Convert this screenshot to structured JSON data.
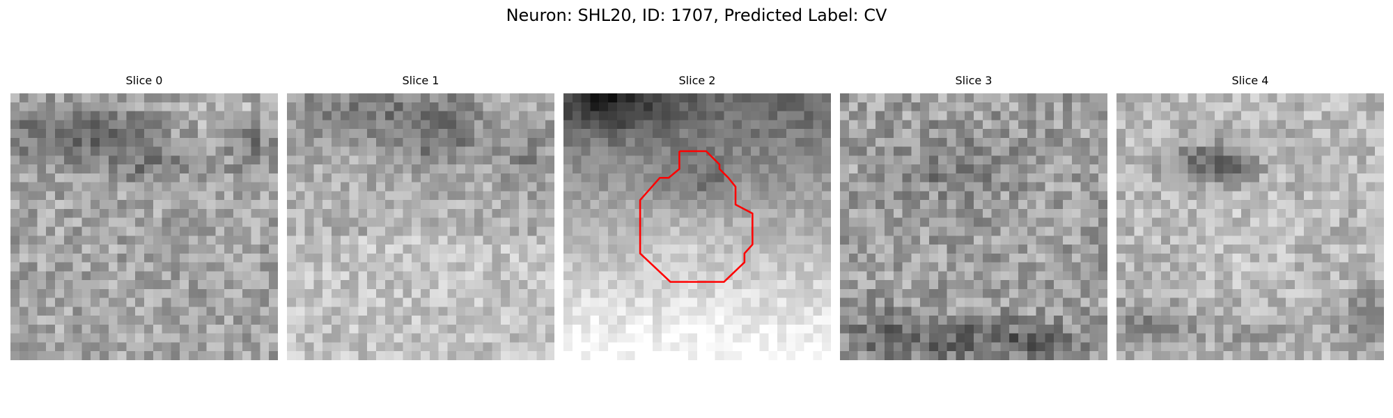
{
  "figure": {
    "title": "Neuron: SHL20, ID: 1707, Predicted Label: CV",
    "background": "#ffffff"
  },
  "panels": [
    {
      "label": "Slice 0",
      "dark_regions": "upper-left band, lower-middle streak",
      "has_outline": false
    },
    {
      "label": "Slice 1",
      "dark_regions": "upper band across width",
      "has_outline": false
    },
    {
      "label": "Slice 2",
      "dark_regions": "dark upper-left corner and top band",
      "has_outline": true
    },
    {
      "label": "Slice 3",
      "dark_regions": "dark patches along bottom edge",
      "has_outline": false
    },
    {
      "label": "Slice 4",
      "dark_regions": "dark blob upper-middle, dark bottom corners",
      "has_outline": false
    }
  ],
  "outline": {
    "color": "#ff0000",
    "description": "roughly octagonal contour around central roundish structure in Slice 2"
  },
  "colormap": "grayscale"
}
